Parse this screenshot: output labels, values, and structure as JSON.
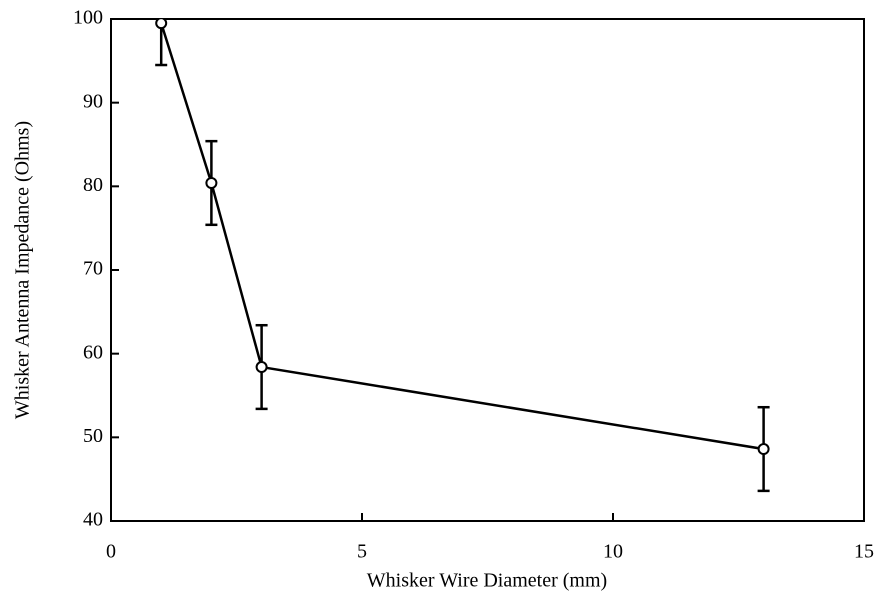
{
  "chart_data": {
    "type": "line",
    "x_label": "Whisker Wire Diameter (mm)",
    "y_label": "Whisker Antenna Impedance (Ohms)",
    "x": [
      1,
      2,
      3,
      13
    ],
    "series": [
      {
        "color": "#000000",
        "values": [
          99.5,
          80.4,
          58.4,
          48.6
        ],
        "errors": [
          5,
          5,
          5,
          5
        ]
      }
    ],
    "xlim": [
      0,
      15
    ],
    "xticks": [
      0,
      5,
      10,
      15
    ],
    "ylim": [
      40,
      100
    ],
    "yticks": [
      40,
      50,
      60,
      70,
      80,
      90,
      100
    ],
    "grid": false
  }
}
